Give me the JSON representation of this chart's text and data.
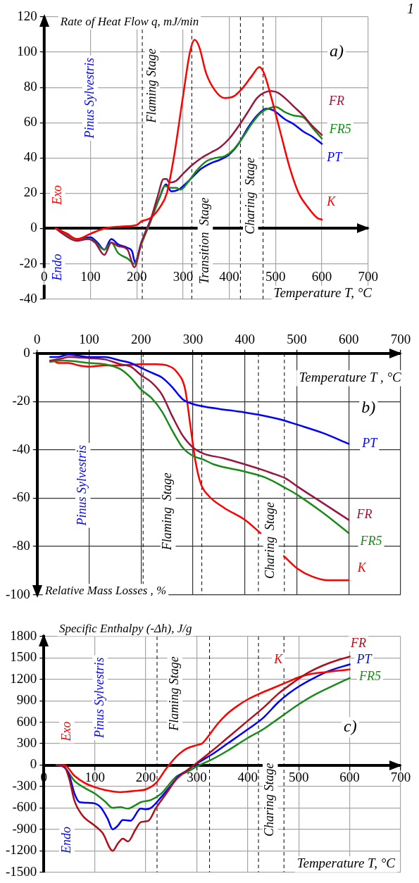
{
  "chart_data": [
    {
      "type": "line",
      "xlabel": "Temperature T, °C",
      "ylabel": "Rate of Heat Flow q, mJ/min",
      "xlim": [
        0,
        700
      ],
      "xticks": [
        0,
        100,
        200,
        300,
        400,
        500,
        600,
        700
      ],
      "ylim": [
        -40,
        120
      ],
      "yticks": [
        -40,
        -20,
        0,
        20,
        40,
        60,
        80,
        100,
        120
      ],
      "grid": true,
      "legend": false,
      "marker": "none",
      "annotations": [
        "1",
        "a)",
        "Pinus Sylvestris",
        "Flaming Stage",
        "Transition  Stage",
        "Charing  Stage",
        "Exo",
        "Endo"
      ],
      "ref_lines": [
        {
          "axis": "x",
          "value": 212,
          "color": "#000000",
          "line_style": "dashed"
        },
        {
          "axis": "x",
          "value": 319,
          "color": "#000000",
          "line_style": "dashed"
        },
        {
          "axis": "x",
          "value": 424,
          "color": "#000000",
          "line_style": "dashed"
        },
        {
          "axis": "x",
          "value": 473,
          "color": "#000000",
          "line_style": "dashed"
        }
      ],
      "series": [
        {
          "name": "K",
          "color": "#ff0000",
          "x": [
            25,
            50,
            70,
            100,
            130,
            160,
            200,
            210,
            230,
            250,
            265,
            280,
            300,
            315,
            325,
            335,
            350,
            370,
            390,
            410,
            430,
            450,
            465,
            475,
            490,
            510,
            530,
            550,
            570,
            590,
            600
          ],
          "values": [
            0,
            -3,
            -6,
            -3,
            0,
            1,
            2,
            4,
            6,
            12,
            20,
            40,
            75,
            100,
            107,
            103,
            88,
            78,
            74,
            75,
            80,
            87,
            91.5,
            88,
            75,
            55,
            35,
            20,
            12,
            6,
            5
          ]
        },
        {
          "name": "FR",
          "color": "#99173f",
          "x": [
            25,
            40,
            70,
            95,
            110,
            130,
            145,
            160,
            180,
            195,
            210,
            230,
            245,
            258,
            265,
            270,
            285,
            300,
            320,
            340,
            360,
            380,
            400,
            420,
            440,
            460,
            475,
            490,
            505,
            520,
            540,
            560,
            580,
            600
          ],
          "values": [
            0,
            -3,
            -7,
            -6,
            -8,
            -15,
            -8,
            -10,
            -12,
            -22,
            -8,
            5,
            18,
            28,
            28,
            26,
            27,
            31,
            36,
            40,
            43,
            46,
            51,
            58,
            66,
            74,
            77,
            78,
            77,
            74,
            69,
            64,
            58,
            53
          ]
        },
        {
          "name": "FR5",
          "color": "#1a8a1a",
          "x": [
            25,
            40,
            70,
            100,
            130,
            145,
            160,
            180,
            195,
            210,
            230,
            250,
            260,
            275,
            285,
            295,
            310,
            330,
            350,
            370,
            390,
            410,
            430,
            450,
            470,
            490,
            500,
            520,
            540,
            560,
            580,
            600
          ],
          "values": [
            0,
            -2,
            -6,
            -6,
            -12,
            -8,
            -14,
            -17,
            -20,
            -9,
            4,
            18,
            24,
            23,
            23,
            22,
            26,
            33,
            38,
            40,
            41,
            45,
            52,
            60,
            66,
            68.5,
            69,
            66,
            64,
            63,
            57,
            51
          ]
        },
        {
          "name": "PT",
          "color": "#0000ff",
          "x": [
            25,
            40,
            70,
            100,
            115,
            130,
            145,
            160,
            180,
            190,
            196,
            210,
            230,
            250,
            263,
            275,
            290,
            300,
            320,
            340,
            360,
            380,
            400,
            420,
            440,
            460,
            480,
            495,
            520,
            540,
            560,
            580,
            600
          ],
          "values": [
            0,
            -2,
            -6,
            -5,
            -8,
            -12,
            -6,
            -9,
            -11,
            -13,
            -19,
            -8,
            5,
            18,
            25,
            21,
            22,
            24,
            29,
            34,
            37,
            39,
            42,
            48,
            57,
            64,
            68,
            67,
            62,
            59,
            55,
            52,
            48
          ]
        }
      ]
    },
    {
      "type": "line",
      "xlabel": "Temperature T , °C",
      "ylabel": "Relative Mass Losses , %",
      "xlim": [
        0,
        700
      ],
      "xticks": [
        0,
        100,
        200,
        300,
        400,
        500,
        600,
        700
      ],
      "ylim": [
        -100,
        0
      ],
      "yticks": [
        -100,
        -80,
        -60,
        -40,
        -20,
        0
      ],
      "grid": true,
      "legend": false,
      "marker": "none",
      "annotations": [
        "b)",
        "Pinus Sylvestris",
        "Flaming  Stage",
        "Charing  Stage"
      ],
      "ref_lines": [
        {
          "axis": "x",
          "value": 204,
          "color": "#000000",
          "line_style": "dashed"
        },
        {
          "axis": "x",
          "value": 317,
          "color": "#000000",
          "line_style": "dashed"
        },
        {
          "axis": "x",
          "value": 426,
          "color": "#000000",
          "line_style": "dashed"
        },
        {
          "axis": "x",
          "value": 476,
          "color": "#000000",
          "line_style": "dashed"
        }
      ],
      "series": [
        {
          "name": "PT",
          "color": "#0000ff",
          "x": [
            25,
            40,
            60,
            80,
            100,
            130,
            160,
            180,
            200,
            220,
            240,
            260,
            280,
            300,
            320,
            350,
            400,
            440,
            470,
            500,
            550,
            600
          ],
          "values": [
            -1.5,
            -1.5,
            -0.5,
            -1,
            -1.5,
            -1.5,
            -3,
            -4,
            -6,
            -8,
            -10,
            -14,
            -19,
            -21,
            -22,
            -23,
            -24.5,
            -26,
            -27.5,
            -29.5,
            -33,
            -37.5
          ]
        },
        {
          "name": "FR",
          "color": "#99173f",
          "x": [
            25,
            50,
            60,
            100,
            130,
            160,
            180,
            200,
            220,
            240,
            260,
            280,
            300,
            320,
            360,
            400,
            430,
            450,
            480,
            500,
            550,
            600
          ],
          "values": [
            -3,
            -2,
            -1.5,
            -2,
            -2.5,
            -4.5,
            -5.5,
            -9,
            -12,
            -17,
            -26,
            -34,
            -39,
            -41.5,
            -43.5,
            -46,
            -48,
            -49.5,
            -52,
            -55,
            -62,
            -69
          ]
        },
        {
          "name": "FR5",
          "color": "#1a8a1a",
          "x": [
            25,
            50,
            100,
            130,
            160,
            180,
            200,
            220,
            240,
            260,
            280,
            300,
            320,
            340,
            400,
            440,
            480,
            500,
            550,
            600
          ],
          "values": [
            -3.5,
            -3,
            -4,
            -4.5,
            -6.5,
            -10,
            -15,
            -18.5,
            -24,
            -32,
            -39,
            -42.5,
            -44,
            -46,
            -49,
            -51.5,
            -56,
            -58.5,
            -66,
            -74.5
          ]
        },
        {
          "name": "K",
          "color": "#ff0000",
          "x": [
            25,
            30,
            40,
            60,
            80,
            100,
            130,
            160,
            200,
            230,
            250,
            270,
            285,
            295,
            305,
            315,
            330,
            360,
            400,
            430,
            450,
            475,
            500,
            530,
            560,
            600
          ],
          "values": [
            -3.5,
            -3,
            -4,
            -4,
            -5,
            -5.5,
            -5,
            -5,
            -4.5,
            -4.5,
            -5,
            -8,
            -15,
            -30,
            -45,
            -54,
            -59,
            -64,
            -69,
            -74.5,
            null,
            -84,
            -89,
            -92.5,
            -94,
            -94
          ]
        }
      ]
    },
    {
      "type": "line",
      "xlabel": "Temperature T, °C",
      "ylabel": "Specific Enthalpy (-Δh), J/g",
      "xlim": [
        0,
        700
      ],
      "xticks": [
        0,
        100,
        200,
        300,
        400,
        500,
        600,
        700
      ],
      "ylim": [
        -1500,
        1800
      ],
      "yticks": [
        -1500,
        -1200,
        -900,
        -600,
        -300,
        0,
        300,
        600,
        900,
        1200,
        1500,
        1800
      ],
      "grid": true,
      "legend": false,
      "marker": "none",
      "annotations": [
        "c)",
        "Exo",
        "Pinus Sylvestris",
        "Flaming Stage",
        "Charing Stage",
        "Endo"
      ],
      "ref_lines": [
        {
          "axis": "x",
          "value": 222,
          "color": "#000000",
          "line_style": "dashed"
        },
        {
          "axis": "x",
          "value": 325,
          "color": "#000000",
          "line_style": "dashed"
        },
        {
          "axis": "x",
          "value": 421,
          "color": "#000000",
          "line_style": "dashed"
        },
        {
          "axis": "x",
          "value": 471,
          "color": "#000000",
          "line_style": "dashed"
        }
      ],
      "series": [
        {
          "name": "FR",
          "color": "#b0101c",
          "x": [
            25,
            40,
            50,
            60,
            75,
            100,
            115,
            135,
            145,
            155,
            165,
            180,
            190,
            205,
            220,
            240,
            260,
            280,
            300,
            330,
            360,
            400,
            430,
            460,
            490,
            520,
            560,
            600
          ],
          "values": [
            0,
            -20,
            -200,
            -500,
            -700,
            -850,
            -950,
            -1200,
            -1100,
            -1030,
            -1070,
            -900,
            -800,
            -780,
            -600,
            -400,
            -200,
            -80,
            30,
            200,
            380,
            620,
            800,
            1000,
            1160,
            1300,
            1430,
            1520
          ]
        },
        {
          "name": "K",
          "color": "#ff0000",
          "x": [
            25,
            40,
            60,
            80,
            100,
            120,
            150,
            180,
            200,
            220,
            240,
            260,
            280,
            300,
            310,
            320,
            340,
            360,
            380,
            400,
            420,
            450,
            480,
            500,
            520,
            550,
            600
          ],
          "values": [
            0,
            0,
            -150,
            -250,
            -310,
            -350,
            -380,
            -360,
            -340,
            -250,
            -50,
            120,
            230,
            280,
            300,
            380,
            570,
            720,
            830,
            920,
            990,
            1080,
            1170,
            1230,
            1270,
            1300,
            1340
          ]
        },
        {
          "name": "PT",
          "color": "#0000ff",
          "x": [
            25,
            40,
            50,
            60,
            70,
            90,
            110,
            125,
            135,
            145,
            155,
            170,
            190,
            200,
            210,
            230,
            250,
            265,
            280,
            300,
            330,
            360,
            400,
            430,
            460,
            480,
            500,
            530,
            560,
            600
          ],
          "values": [
            0,
            -30,
            -150,
            -400,
            -520,
            -530,
            -580,
            -750,
            -900,
            -850,
            -770,
            -780,
            -610,
            -620,
            -600,
            -450,
            -280,
            -150,
            -80,
            20,
            150,
            300,
            500,
            660,
            880,
            1000,
            1100,
            1220,
            1320,
            1410
          ]
        },
        {
          "name": "FR5",
          "color": "#1a8a1a",
          "x": [
            25,
            40,
            60,
            80,
            100,
            120,
            135,
            150,
            165,
            180,
            190,
            210,
            230,
            260,
            280,
            300,
            330,
            360,
            400,
            430,
            460,
            500,
            530,
            570,
            600
          ],
          "values": [
            0,
            -30,
            -220,
            -320,
            -400,
            -510,
            -600,
            -590,
            -610,
            -560,
            -520,
            -490,
            -400,
            -160,
            -100,
            -20,
            80,
            200,
            380,
            500,
            650,
            850,
            980,
            1120,
            1220
          ]
        }
      ]
    }
  ]
}
